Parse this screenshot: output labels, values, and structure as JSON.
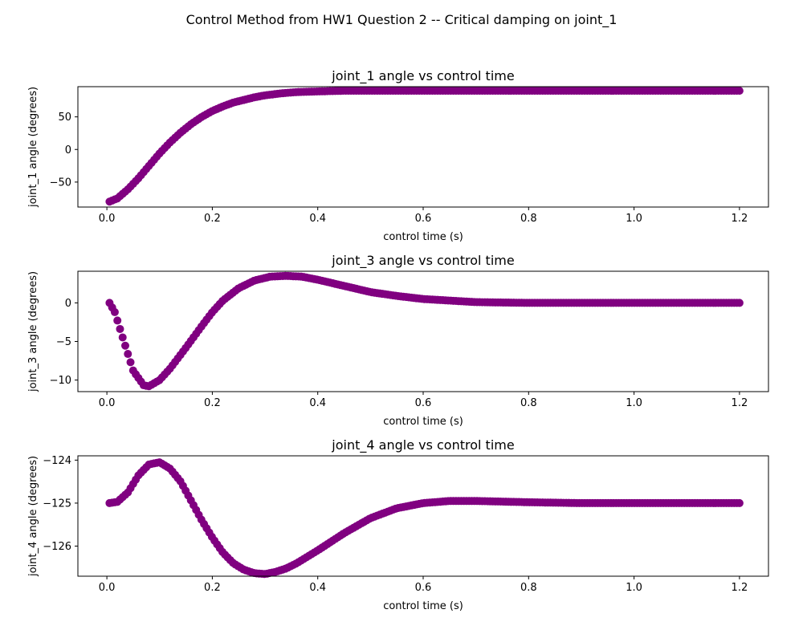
{
  "figure": {
    "suptitle": "Control Method from HW1 Question 2 -- Critical damping on joint_1",
    "marker_color": "#800080"
  },
  "chart_data": [
    {
      "type": "scatter",
      "title": "joint_1 angle vs control time",
      "xlabel": "control time (s)",
      "ylabel": "joint_1 angle (degrees)",
      "xlim": [
        -0.055,
        1.255
      ],
      "ylim": [
        -88.3,
        96.3
      ],
      "xticks": [
        "0.0",
        "0.2",
        "0.4",
        "0.6",
        "0.8",
        "1.0",
        "1.2"
      ],
      "yticks": [
        "-50",
        "0",
        "50"
      ],
      "series": [
        {
          "color": "#800080",
          "x": [
            0.005,
            0.02,
            0.04,
            0.06,
            0.08,
            0.1,
            0.12,
            0.14,
            0.16,
            0.18,
            0.2,
            0.22,
            0.24,
            0.26,
            0.28,
            0.3,
            0.33,
            0.36,
            0.4,
            0.45,
            0.5,
            0.6,
            0.7,
            0.8,
            0.9,
            1.0,
            1.1,
            1.2
          ],
          "y": [
            -80,
            -75,
            -61,
            -44,
            -25,
            -6,
            11,
            26,
            39,
            50,
            59,
            66,
            72,
            76,
            80,
            83,
            86,
            88,
            89,
            90,
            90,
            90,
            90,
            90,
            90,
            90,
            90,
            90
          ]
        }
      ]
    },
    {
      "type": "scatter",
      "title": "joint_3 angle vs control time",
      "xlabel": "control time (s)",
      "ylabel": "joint_3 angle (degrees)",
      "xlim": [
        -0.055,
        1.255
      ],
      "ylim": [
        -11.5,
        4.1
      ],
      "xticks": [
        "0.0",
        "0.2",
        "0.4",
        "0.6",
        "0.8",
        "1.0",
        "1.2"
      ],
      "yticks": [
        "-10",
        "-5",
        "0"
      ],
      "series": [
        {
          "color": "#800080",
          "x": [
            0.005,
            0.015,
            0.03,
            0.05,
            0.07,
            0.08,
            0.1,
            0.12,
            0.15,
            0.18,
            0.2,
            0.22,
            0.25,
            0.28,
            0.31,
            0.34,
            0.37,
            0.4,
            0.45,
            0.5,
            0.55,
            0.6,
            0.65,
            0.7,
            0.8,
            0.9,
            1.0,
            1.1,
            1.2
          ],
          "y": [
            0,
            -1.2,
            -4.5,
            -8.8,
            -10.7,
            -10.8,
            -10.0,
            -8.5,
            -5.8,
            -3.0,
            -1.2,
            0.3,
            1.9,
            2.9,
            3.4,
            3.5,
            3.4,
            3.0,
            2.2,
            1.4,
            0.9,
            0.5,
            0.3,
            0.1,
            0,
            0,
            0,
            0,
            0
          ]
        }
      ]
    },
    {
      "type": "scatter",
      "title": "joint_4 angle vs control time",
      "xlabel": "control time (s)",
      "ylabel": "joint_4 angle (degrees)",
      "xlim": [
        -0.055,
        1.255
      ],
      "ylim": [
        -126.7,
        -123.9
      ],
      "xticks": [
        "0.0",
        "0.2",
        "0.4",
        "0.6",
        "0.8",
        "1.0",
        "1.2"
      ],
      "yticks": [
        "-126",
        "-125",
        "-124"
      ],
      "series": [
        {
          "color": "#800080",
          "x": [
            0.005,
            0.02,
            0.04,
            0.06,
            0.08,
            0.1,
            0.12,
            0.14,
            0.16,
            0.18,
            0.2,
            0.22,
            0.24,
            0.26,
            0.28,
            0.3,
            0.32,
            0.34,
            0.36,
            0.4,
            0.45,
            0.5,
            0.55,
            0.6,
            0.65,
            0.7,
            0.8,
            0.9,
            1.0,
            1.1,
            1.2
          ],
          "y": [
            -125.0,
            -124.97,
            -124.75,
            -124.35,
            -124.1,
            -124.05,
            -124.2,
            -124.5,
            -124.95,
            -125.4,
            -125.8,
            -126.15,
            -126.4,
            -126.55,
            -126.63,
            -126.65,
            -126.6,
            -126.52,
            -126.4,
            -126.1,
            -125.7,
            -125.35,
            -125.12,
            -125.0,
            -124.95,
            -124.95,
            -124.98,
            -125.0,
            -125.0,
            -125.0,
            -125.0
          ]
        }
      ]
    }
  ]
}
